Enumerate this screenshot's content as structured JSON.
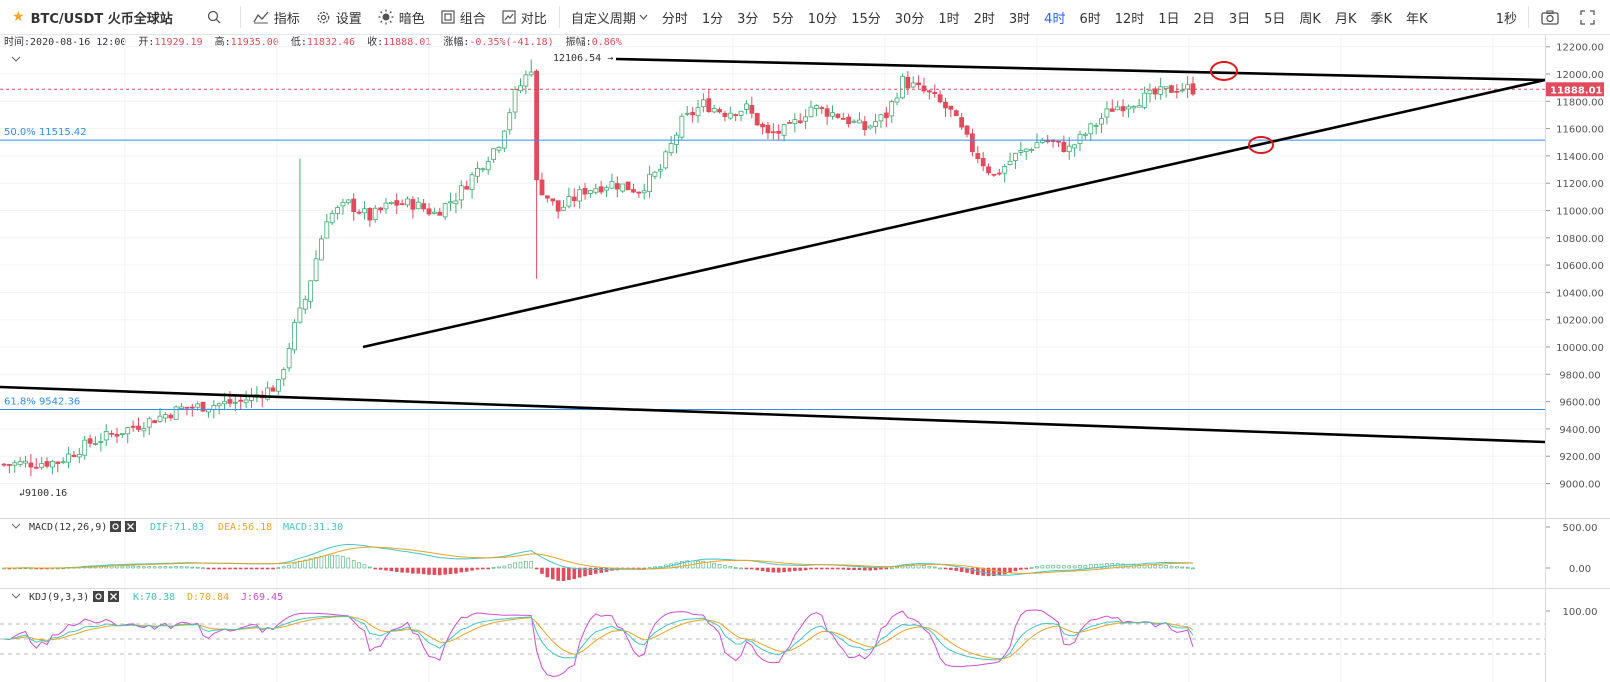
{
  "toolbar": {
    "symbol": "BTC/USDT 火币全球站",
    "indicators_label": "指标",
    "settings_label": "设置",
    "theme_label": "暗色",
    "combo_label": "组合",
    "compare_label": "对比",
    "custom_period_label": "自定义周期",
    "periods": [
      "分时",
      "1分",
      "3分",
      "5分",
      "10分",
      "15分",
      "30分",
      "1时",
      "2时",
      "3时",
      "4时",
      "6时",
      "12时",
      "1日",
      "2日",
      "3日",
      "5日",
      "周K",
      "月K",
      "季K",
      "年K"
    ],
    "active_period": "4时",
    "interval_label": "1秒"
  },
  "ohlc": {
    "time_label": "时间:",
    "time": "2020-08-16 12:00",
    "open_label": "开:",
    "open": "11929.19",
    "high_label": "高:",
    "high": "11935.00",
    "low_label": "低:",
    "low": "11832.46",
    "close_label": "收:",
    "close": "11888.01",
    "change_label": "涨幅:",
    "change": "-0.35%(-41.18)",
    "amp_label": "振幅:",
    "amp": "0.86%"
  },
  "colors": {
    "up": "#3fae72",
    "down": "#e24b5b",
    "fib": "#2f8ff0",
    "dif": "#45c4c4",
    "dea": "#e8a424",
    "k": "#45c4c4",
    "d": "#e8a424",
    "j": "#d24dd2",
    "trend": "#000000"
  },
  "main_axis": {
    "ticks": [
      12200,
      12000,
      11800,
      11600,
      11400,
      11200,
      11000,
      10800,
      10600,
      10400,
      10200,
      10000,
      9800,
      9600,
      9400,
      9200,
      9000
    ],
    "current_price": "11888.01"
  },
  "annotations": {
    "high_marker": "12106.54",
    "low_marker": "9100.16",
    "fib50": "50.0% 11515.42",
    "fib618": "61.8% 9542.36",
    "fib50_value": 11515.42,
    "fib618_value": 9542.36
  },
  "macd": {
    "label": "MACD(12,26,9)",
    "dif": "DIF:71.83",
    "dea": "DEA:56.18",
    "macd": "MACD:31.30",
    "ticks": [
      "500.00",
      "0.00"
    ]
  },
  "kdj": {
    "label": "KDJ(9,3,3)",
    "k": "K:70.38",
    "d": "D:70.84",
    "j": "J:69.45",
    "ticks": [
      "100.00"
    ]
  },
  "icons": {
    "star": "star-icon",
    "search": "search-icon",
    "indicator": "indicator-icon",
    "settings": "gear-icon",
    "theme": "sun-icon",
    "combo": "combo-icon",
    "compare": "compare-icon",
    "camera": "camera-icon",
    "fullscreen": "fullscreen-icon"
  }
}
